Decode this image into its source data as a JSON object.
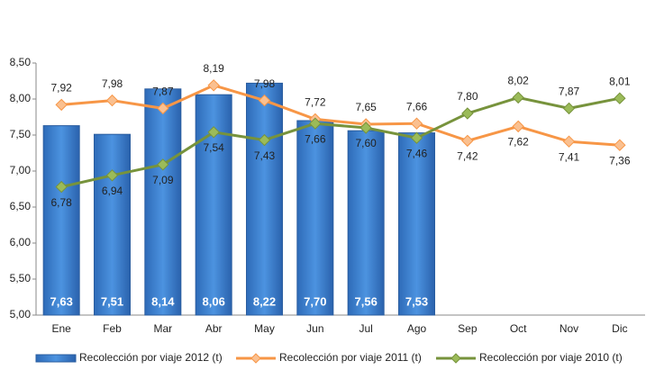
{
  "chart_data": {
    "type": "combo",
    "categories": [
      "Ene",
      "Feb",
      "Mar",
      "Abr",
      "May",
      "Jun",
      "Jul",
      "Ago",
      "Sep",
      "Oct",
      "Nov",
      "Dic"
    ],
    "series": [
      {
        "name": "Recolección por viaje 2012 (t)",
        "type": "bar",
        "color": "#3b80d0",
        "values": [
          7.63,
          7.51,
          8.14,
          8.06,
          8.22,
          7.7,
          7.56,
          7.53,
          null,
          null,
          null,
          null
        ],
        "value_labels": [
          "7,63",
          "7,51",
          "8,14",
          "8,06",
          "8,22",
          "7,70",
          "7,56",
          "7,53",
          null,
          null,
          null,
          null
        ]
      },
      {
        "name": "Recolección por viaje 2011 (t)",
        "type": "line",
        "color": "#f79646",
        "values": [
          7.92,
          7.98,
          7.87,
          8.19,
          7.98,
          7.72,
          7.65,
          7.66,
          7.42,
          7.62,
          7.41,
          7.36
        ],
        "value_labels": [
          "7,92",
          "7,98",
          "7,87",
          "8,19",
          "7,98",
          "7,72",
          "7,65",
          "7,66",
          "7,42",
          "7,62",
          "7,41",
          "7,36"
        ]
      },
      {
        "name": "Recolección por viaje 2010 (t)",
        "type": "line",
        "color": "#77933c",
        "values": [
          6.78,
          6.94,
          7.09,
          7.54,
          7.43,
          7.66,
          7.6,
          7.46,
          7.8,
          8.02,
          7.87,
          8.01
        ],
        "value_labels": [
          "6,78",
          "6,94",
          "7,09",
          "7,54",
          "7,43",
          "7,66",
          "7,60",
          "7,46",
          "7,80",
          "8,02",
          "7,87",
          "8,01"
        ]
      }
    ],
    "ylim": [
      5,
      8.5
    ],
    "yticks": [
      {
        "value": 5,
        "label": "5,00"
      },
      {
        "value": 5.5,
        "label": "5,50"
      },
      {
        "value": 6,
        "label": "6,00"
      },
      {
        "value": 6.5,
        "label": "6,50"
      },
      {
        "value": 7,
        "label": "7,00"
      },
      {
        "value": 7.5,
        "label": "7,50"
      },
      {
        "value": 8,
        "label": "8,00"
      },
      {
        "value": 8.5,
        "label": "8,50"
      }
    ],
    "grid": false
  }
}
